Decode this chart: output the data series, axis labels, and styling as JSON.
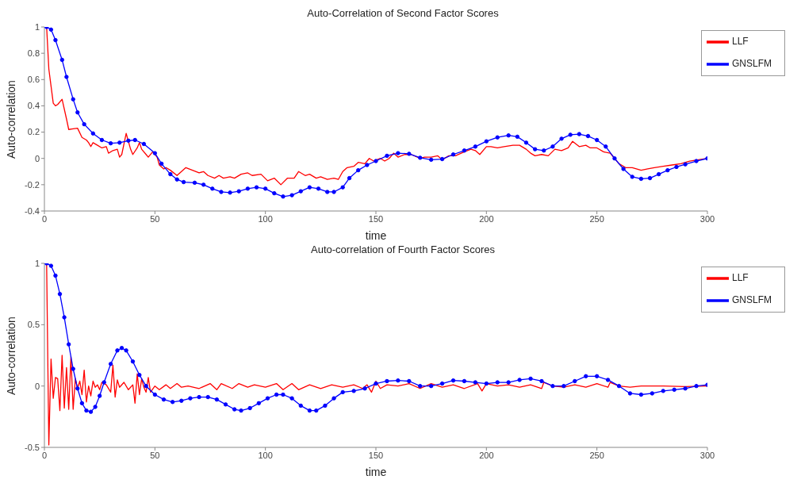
{
  "chart_data": [
    {
      "type": "line",
      "title": "Auto-Correlation of Second Factor Scores",
      "xlabel": "time",
      "ylabel": "Auto-correlation",
      "xlim": [
        0,
        300
      ],
      "xticks": [
        0,
        50,
        100,
        150,
        200,
        250,
        300
      ],
      "ylim": [
        -0.4,
        1
      ],
      "yticks": [
        -0.4,
        -0.2,
        0,
        0.2,
        0.4,
        0.6,
        0.8,
        1
      ],
      "grid": false,
      "legend": "top right",
      "line_style": "solid",
      "series": [
        {
          "name": "LLF",
          "color": "#ff0000",
          "marker": "none",
          "x": [
            1,
            2,
            3,
            4,
            5,
            6,
            8,
            10,
            11,
            13,
            15,
            17,
            19,
            20,
            21,
            22,
            24,
            26,
            28,
            29,
            31,
            33,
            34,
            35,
            37,
            39,
            40,
            42,
            43,
            44,
            46,
            47,
            49,
            51,
            52,
            54,
            55,
            57,
            60,
            62,
            64,
            67,
            70,
            72,
            74,
            77,
            79,
            81,
            84,
            86,
            89,
            92,
            94,
            98,
            101,
            104,
            107,
            110,
            113,
            115,
            118,
            120,
            123,
            125,
            128,
            131,
            133,
            135,
            137,
            140,
            142,
            145,
            147,
            149,
            152,
            154,
            156,
            158,
            160,
            163,
            166,
            170,
            172,
            175,
            178,
            180,
            183,
            186,
            190,
            193,
            195,
            197,
            200,
            202,
            205,
            208,
            212,
            215,
            218,
            220,
            222,
            225,
            228,
            231,
            234,
            237,
            239,
            242,
            245,
            247,
            250,
            253,
            256,
            258,
            260,
            263,
            266,
            270,
            273,
            276,
            280,
            284,
            288,
            292,
            296,
            300
          ],
          "values": [
            1,
            0.68,
            0.55,
            0.42,
            0.4,
            0.41,
            0.45,
            0.3,
            0.22,
            0.225,
            0.23,
            0.16,
            0.14,
            0.12,
            0.09,
            0.12,
            0.1,
            0.08,
            0.09,
            0.04,
            0.06,
            0.07,
            0.01,
            0.03,
            0.19,
            0.07,
            0.03,
            0.08,
            0.12,
            0.07,
            0.03,
            0.01,
            0.05,
            0.01,
            -0.05,
            -0.08,
            -0.07,
            -0.09,
            -0.13,
            -0.1,
            -0.07,
            -0.09,
            -0.11,
            -0.1,
            -0.13,
            -0.15,
            -0.13,
            -0.15,
            -0.14,
            -0.15,
            -0.12,
            -0.11,
            -0.13,
            -0.12,
            -0.17,
            -0.15,
            -0.2,
            -0.15,
            -0.15,
            -0.1,
            -0.13,
            -0.12,
            -0.15,
            -0.14,
            -0.16,
            -0.15,
            -0.16,
            -0.1,
            -0.07,
            -0.06,
            -0.03,
            -0.04,
            0,
            -0.02,
            0,
            -0.02,
            0,
            0.04,
            0.01,
            0.03,
            0.03,
            0,
            0.01,
            0.01,
            0.02,
            -0.01,
            0.02,
            0.02,
            0.05,
            0.07,
            0.06,
            0.03,
            0.09,
            0.09,
            0.08,
            0.09,
            0.1,
            0.1,
            0.07,
            0.04,
            0.02,
            0.03,
            0.02,
            0.07,
            0.06,
            0.08,
            0.13,
            0.09,
            0.1,
            0.08,
            0.08,
            0.05,
            0.04,
            0,
            -0.04,
            -0.07,
            -0.07,
            -0.09,
            -0.08,
            -0.07,
            -0.06,
            -0.05,
            -0.04,
            -0.02,
            -0.01,
            0
          ]
        },
        {
          "name": "GNSLFM",
          "color": "#0000ff",
          "marker": "circle",
          "x": [
            1,
            3,
            5,
            8,
            10,
            13,
            15,
            18,
            22,
            26,
            30,
            34,
            38,
            41,
            45,
            50,
            53,
            57,
            60,
            63,
            68,
            72,
            76,
            80,
            84,
            88,
            92,
            96,
            100,
            104,
            108,
            112,
            116,
            120,
            124,
            128,
            131,
            135,
            138,
            142,
            146,
            150,
            155,
            160,
            165,
            170,
            175,
            180,
            185,
            190,
            195,
            200,
            205,
            210,
            214,
            218,
            222,
            226,
            230,
            234,
            238,
            242,
            246,
            250,
            254,
            258,
            262,
            266,
            270,
            274,
            278,
            282,
            286,
            290,
            295,
            300
          ],
          "values": [
            1,
            0.98,
            0.9,
            0.75,
            0.62,
            0.45,
            0.35,
            0.26,
            0.19,
            0.14,
            0.115,
            0.12,
            0.135,
            0.14,
            0.11,
            0.04,
            -0.04,
            -0.12,
            -0.16,
            -0.18,
            -0.185,
            -0.2,
            -0.23,
            -0.255,
            -0.26,
            -0.25,
            -0.23,
            -0.22,
            -0.23,
            -0.265,
            -0.29,
            -0.28,
            -0.25,
            -0.22,
            -0.23,
            -0.255,
            -0.255,
            -0.22,
            -0.15,
            -0.09,
            -0.05,
            -0.02,
            0.02,
            0.04,
            0.035,
            0.005,
            -0.01,
            -0.005,
            0.03,
            0.06,
            0.09,
            0.13,
            0.16,
            0.175,
            0.165,
            0.12,
            0.07,
            0.06,
            0.09,
            0.15,
            0.18,
            0.185,
            0.17,
            0.14,
            0.09,
            0,
            -0.08,
            -0.14,
            -0.155,
            -0.15,
            -0.12,
            -0.09,
            -0.065,
            -0.045,
            -0.02,
            0
          ]
        }
      ]
    },
    {
      "type": "line",
      "title": "Auto-correlation of Fourth Factor Scores",
      "xlabel": "time",
      "ylabel": "Auto-correlation",
      "xlim": [
        0,
        300
      ],
      "xticks": [
        0,
        50,
        100,
        150,
        200,
        250,
        300
      ],
      "ylim": [
        -0.5,
        1
      ],
      "yticks": [
        -0.5,
        0,
        0.5,
        1
      ],
      "grid": false,
      "legend": "top right",
      "line_style": "solid",
      "series": [
        {
          "name": "LLF",
          "color": "#ff0000",
          "marker": "none",
          "x": [
            1,
            2,
            3,
            4,
            5,
            6,
            7,
            8,
            9,
            10,
            11,
            12,
            13,
            14,
            15,
            16,
            17,
            18,
            19,
            20,
            21,
            22,
            23,
            24,
            25,
            26,
            28,
            30,
            31,
            32,
            33,
            34,
            36,
            38,
            40,
            41,
            42,
            43,
            44,
            45,
            46,
            47,
            48,
            50,
            52,
            55,
            57,
            60,
            62,
            65,
            70,
            75,
            78,
            80,
            85,
            88,
            92,
            95,
            100,
            105,
            108,
            112,
            115,
            120,
            125,
            130,
            135,
            140,
            144,
            146,
            148,
            150,
            152,
            155,
            160,
            165,
            170,
            175,
            180,
            185,
            190,
            196,
            198,
            200,
            205,
            210,
            215,
            220,
            225,
            226,
            230,
            235,
            240,
            245,
            250,
            255,
            256,
            260,
            265,
            270,
            280,
            290,
            300
          ],
          "values": [
            1,
            -0.48,
            0.22,
            -0.1,
            0.07,
            0.06,
            -0.2,
            0.25,
            -0.18,
            0.15,
            -0.19,
            0.24,
            -0.19,
            0.06,
            -0.02,
            0.04,
            -0.07,
            0.13,
            -0.13,
            0,
            -0.08,
            0.04,
            -0.01,
            0.01,
            -0.03,
            0.03,
            0.01,
            -0.05,
            0.17,
            -0.09,
            0.05,
            -0.01,
            0.03,
            -0.03,
            0.01,
            -0.14,
            0.1,
            -0.07,
            0.06,
            -0.01,
            -0.05,
            0.07,
            -0.05,
            0,
            -0.03,
            0.01,
            -0.02,
            0.02,
            -0.01,
            0,
            -0.02,
            0.02,
            -0.03,
            0.02,
            -0.02,
            0.02,
            -0.01,
            0.01,
            -0.01,
            0.02,
            -0.03,
            0.02,
            -0.03,
            0.01,
            -0.02,
            0.01,
            -0.01,
            0.01,
            -0.02,
            0.01,
            -0.05,
            0.04,
            -0.02,
            0.01,
            0,
            0.02,
            -0.02,
            0.02,
            -0.01,
            0.01,
            -0.02,
            0.02,
            -0.04,
            0.02,
            0,
            0.01,
            -0.01,
            0.01,
            -0.02,
            0.03,
            0,
            -0.01,
            0.01,
            -0.01,
            0.02,
            -0.01,
            0.03,
            0,
            -0.01,
            0,
            0,
            -0.005,
            0
          ]
        },
        {
          "name": "GNSLFM",
          "color": "#0000ff",
          "marker": "circle",
          "x": [
            1,
            3,
            5,
            7,
            9,
            11,
            13,
            15,
            17,
            19,
            21,
            23,
            25,
            27,
            30,
            33,
            35,
            37,
            40,
            43,
            46,
            50,
            54,
            58,
            62,
            66,
            70,
            74,
            78,
            82,
            86,
            89,
            93,
            97,
            101,
            105,
            108,
            112,
            116,
            120,
            123,
            127,
            131,
            135,
            140,
            145,
            150,
            155,
            160,
            165,
            170,
            175,
            180,
            185,
            190,
            195,
            200,
            205,
            210,
            215,
            220,
            225,
            230,
            235,
            240,
            245,
            250,
            255,
            260,
            265,
            270,
            275,
            280,
            285,
            290,
            295,
            300
          ],
          "values": [
            1,
            0.98,
            0.9,
            0.75,
            0.56,
            0.34,
            0.14,
            -0.02,
            -0.14,
            -0.2,
            -0.21,
            -0.17,
            -0.08,
            0.03,
            0.18,
            0.29,
            0.31,
            0.29,
            0.2,
            0.09,
            0,
            -0.07,
            -0.11,
            -0.13,
            -0.12,
            -0.1,
            -0.09,
            -0.09,
            -0.11,
            -0.15,
            -0.19,
            -0.2,
            -0.18,
            -0.14,
            -0.1,
            -0.07,
            -0.07,
            -0.1,
            -0.16,
            -0.2,
            -0.2,
            -0.16,
            -0.1,
            -0.05,
            -0.04,
            -0.02,
            0.02,
            0.04,
            0.045,
            0.04,
            0,
            0,
            0.02,
            0.045,
            0.04,
            0.03,
            0.02,
            0.03,
            0.03,
            0.05,
            0.06,
            0.04,
            0,
            0,
            0.04,
            0.08,
            0.08,
            0.05,
            0,
            -0.06,
            -0.07,
            -0.06,
            -0.04,
            -0.03,
            -0.02,
            0,
            0.01
          ]
        }
      ]
    }
  ]
}
